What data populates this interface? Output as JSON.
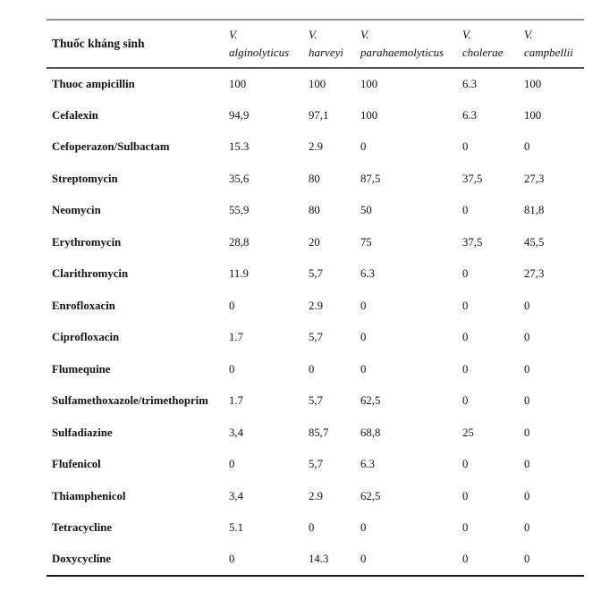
{
  "page": {
    "background": "#ffffff",
    "text_color": "#121212",
    "rule_colors": {
      "top": "#8f8f8f",
      "header_separator": "#565656",
      "bottom": "#1a1a1a"
    }
  },
  "table": {
    "header": {
      "antibiotic_label": "Thuốc kháng sinh",
      "species": [
        {
          "genus": "V.",
          "name": "alginolyticus"
        },
        {
          "genus": "V.",
          "name": "harveyi"
        },
        {
          "genus": "V.",
          "name": "parahaemolyticus"
        },
        {
          "genus": "V.",
          "name": "cholerae"
        },
        {
          "genus": "V.",
          "name": "campbellii"
        }
      ]
    },
    "rows": [
      {
        "name": "Thuoc ampicillin",
        "values": [
          "100",
          "100",
          "100",
          "6.3",
          "100"
        ]
      },
      {
        "name": "Cefalexin",
        "values": [
          "94,9",
          "97,1",
          "100",
          "6.3",
          "100"
        ]
      },
      {
        "name": "Cefoperazon/Sulbactam",
        "values": [
          "15.3",
          "2.9",
          "0",
          "0",
          "0"
        ]
      },
      {
        "name": "Streptomycin",
        "values": [
          "35,6",
          "80",
          "87,5",
          "37,5",
          "27,3"
        ]
      },
      {
        "name": "Neomycin",
        "values": [
          "55,9",
          "80",
          "50",
          "0",
          "81,8"
        ]
      },
      {
        "name": "Erythromycin",
        "values": [
          "28,8",
          "20",
          "75",
          "37,5",
          "45,5"
        ]
      },
      {
        "name": "Clarithromycin",
        "values": [
          "11.9",
          "5,7",
          "6.3",
          "0",
          "27,3"
        ]
      },
      {
        "name": "Enrofloxacin",
        "values": [
          "0",
          "2.9",
          "0",
          "0",
          "0"
        ]
      },
      {
        "name": "Ciprofloxacin",
        "values": [
          "1.7",
          "5,7",
          "0",
          "0",
          "0"
        ]
      },
      {
        "name": "Flumequine",
        "values": [
          "0",
          "0",
          "0",
          "0",
          "0"
        ]
      },
      {
        "name": "Sulfamethoxazole/trimethoprim",
        "values": [
          "1.7",
          "5,7",
          "62,5",
          "0",
          "0"
        ]
      },
      {
        "name": "Sulfadiazine",
        "values": [
          "3,4",
          "85,7",
          "68,8",
          "25",
          "0"
        ]
      },
      {
        "name": "Flufenicol",
        "values": [
          "0",
          "5,7",
          "6.3",
          "0",
          "0"
        ]
      },
      {
        "name": "Thiamphenicol",
        "values": [
          "3,4",
          "2.9",
          "62,5",
          "0",
          "0"
        ]
      },
      {
        "name": "Tetracycline",
        "values": [
          "5.1",
          "0",
          "0",
          "0",
          "0"
        ]
      },
      {
        "name": "Doxycycline",
        "values": [
          "0",
          "14.3",
          "0",
          "0",
          "0"
        ]
      }
    ]
  }
}
